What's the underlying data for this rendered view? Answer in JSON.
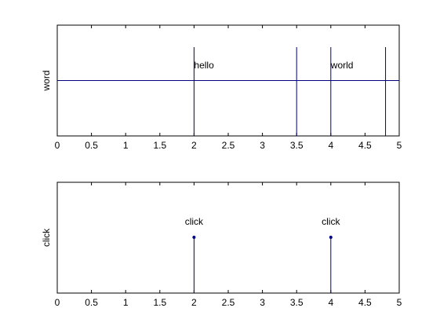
{
  "chart_data": [
    {
      "type": "line",
      "title": "",
      "xlabel": "",
      "ylabel": "word",
      "xlim": [
        0,
        5
      ],
      "xticks": [
        "0",
        "0.5",
        "1",
        "1.5",
        "2",
        "2.5",
        "3",
        "3.5",
        "4",
        "4.5",
        "5"
      ],
      "color": "#00007f",
      "reference_line_y": 0.5,
      "events": [
        {
          "x": 2.0,
          "label": "hello"
        },
        {
          "x": 3.5,
          "label": ""
        },
        {
          "x": 4.0,
          "label": "world"
        },
        {
          "x": 4.8,
          "label": ""
        }
      ]
    },
    {
      "type": "stem",
      "title": "",
      "xlabel": "",
      "ylabel": "click",
      "xlim": [
        0,
        5
      ],
      "xticks": [
        "0",
        "0.5",
        "1",
        "1.5",
        "2",
        "2.5",
        "3",
        "3.5",
        "4",
        "4.5",
        "5"
      ],
      "color": "#00007f",
      "events": [
        {
          "x": 2.0,
          "label": "click"
        },
        {
          "x": 4.0,
          "label": "click"
        }
      ]
    }
  ]
}
